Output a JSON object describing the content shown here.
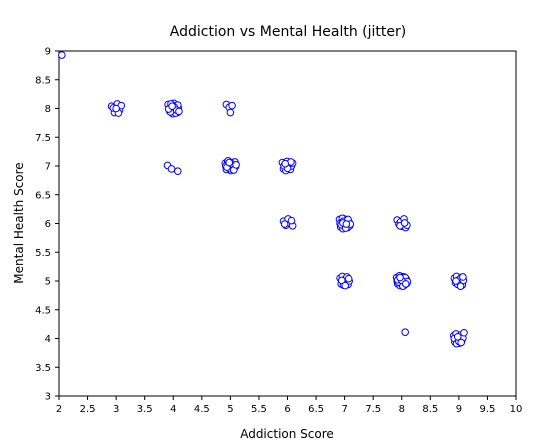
{
  "chart_data": {
    "type": "scatter",
    "title": "Addiction vs Mental Health (jitter)",
    "xlabel": "Addiction Score",
    "ylabel": "Mental Health Score",
    "xlim": [
      2,
      10
    ],
    "ylim": [
      3,
      9
    ],
    "xticks": [
      "2",
      "2.5",
      "3",
      "3.5",
      "4",
      "4.5",
      "5",
      "5.5",
      "6",
      "6.5",
      "7",
      "7.5",
      "8",
      "8.5",
      "9",
      "9.5",
      "10"
    ],
    "yticks": [
      "3",
      "3.5",
      "4",
      "4.5",
      "5",
      "5.5",
      "6",
      "6.5",
      "7",
      "7.5",
      "8",
      "8.5",
      "9"
    ],
    "grid": false,
    "legend": "none",
    "marker": "open-circle",
    "marker_color": "#0000ff",
    "points": [
      {
        "x": 2.05,
        "y": 8.93
      },
      {
        "x": 2.92,
        "y": 8.04
      },
      {
        "x": 2.97,
        "y": 7.93
      },
      {
        "x": 3.02,
        "y": 8.08
      },
      {
        "x": 3.06,
        "y": 7.97
      },
      {
        "x": 3.09,
        "y": 8.05
      },
      {
        "x": 2.95,
        "y": 8.01
      },
      {
        "x": 3.04,
        "y": 7.92
      },
      {
        "x": 3.0,
        "y": 8.0
      },
      {
        "x": 3.91,
        "y": 8.07
      },
      {
        "x": 3.94,
        "y": 7.95
      },
      {
        "x": 3.97,
        "y": 8.03
      },
      {
        "x": 3.99,
        "y": 7.91
      },
      {
        "x": 4.01,
        "y": 8.09
      },
      {
        "x": 4.03,
        "y": 7.98
      },
      {
        "x": 4.05,
        "y": 8.05
      },
      {
        "x": 4.07,
        "y": 7.93
      },
      {
        "x": 4.09,
        "y": 8.01
      },
      {
        "x": 3.93,
        "y": 8.0
      },
      {
        "x": 3.96,
        "y": 8.08
      },
      {
        "x": 4.0,
        "y": 7.96
      },
      {
        "x": 4.04,
        "y": 7.92
      },
      {
        "x": 4.08,
        "y": 8.06
      },
      {
        "x": 3.95,
        "y": 7.94
      },
      {
        "x": 4.02,
        "y": 8.02
      },
      {
        "x": 4.06,
        "y": 7.97
      },
      {
        "x": 3.92,
        "y": 7.99
      },
      {
        "x": 4.1,
        "y": 7.95
      },
      {
        "x": 3.98,
        "y": 8.04
      },
      {
        "x": 3.9,
        "y": 7.01
      },
      {
        "x": 3.97,
        "y": 6.95
      },
      {
        "x": 4.08,
        "y": 6.91
      },
      {
        "x": 4.93,
        "y": 8.07
      },
      {
        "x": 4.98,
        "y": 8.02
      },
      {
        "x": 5.03,
        "y": 8.05
      },
      {
        "x": 5.0,
        "y": 7.93
      },
      {
        "x": 4.91,
        "y": 7.05
      },
      {
        "x": 4.93,
        "y": 6.94
      },
      {
        "x": 4.95,
        "y": 7.08
      },
      {
        "x": 4.97,
        "y": 6.97
      },
      {
        "x": 4.99,
        "y": 7.02
      },
      {
        "x": 5.01,
        "y": 6.92
      },
      {
        "x": 5.03,
        "y": 7.06
      },
      {
        "x": 5.05,
        "y": 6.96
      },
      {
        "x": 5.07,
        "y": 7.03
      },
      {
        "x": 5.09,
        "y": 6.99
      },
      {
        "x": 4.92,
        "y": 7.0
      },
      {
        "x": 4.96,
        "y": 7.09
      },
      {
        "x": 5.0,
        "y": 6.95
      },
      {
        "x": 5.04,
        "y": 7.01
      },
      {
        "x": 5.08,
        "y": 7.07
      },
      {
        "x": 4.94,
        "y": 6.98
      },
      {
        "x": 5.02,
        "y": 7.04
      },
      {
        "x": 5.06,
        "y": 6.93
      },
      {
        "x": 4.98,
        "y": 7.06
      },
      {
        "x": 5.1,
        "y": 7.02
      },
      {
        "x": 5.91,
        "y": 7.06
      },
      {
        "x": 5.93,
        "y": 6.95
      },
      {
        "x": 5.95,
        "y": 7.02
      },
      {
        "x": 5.97,
        "y": 6.92
      },
      {
        "x": 5.99,
        "y": 7.08
      },
      {
        "x": 6.01,
        "y": 6.98
      },
      {
        "x": 6.03,
        "y": 7.04
      },
      {
        "x": 6.05,
        "y": 6.94
      },
      {
        "x": 6.07,
        "y": 7.0
      },
      {
        "x": 6.09,
        "y": 7.05
      },
      {
        "x": 5.94,
        "y": 7.0
      },
      {
        "x": 6.0,
        "y": 6.96
      },
      {
        "x": 6.06,
        "y": 7.07
      },
      {
        "x": 5.96,
        "y": 7.04
      },
      {
        "x": 5.93,
        "y": 6.04
      },
      {
        "x": 5.97,
        "y": 5.97
      },
      {
        "x": 6.01,
        "y": 6.08
      },
      {
        "x": 6.05,
        "y": 6.0
      },
      {
        "x": 6.09,
        "y": 5.96
      },
      {
        "x": 5.95,
        "y": 5.99
      },
      {
        "x": 6.07,
        "y": 6.05
      },
      {
        "x": 6.91,
        "y": 6.07
      },
      {
        "x": 6.93,
        "y": 5.94
      },
      {
        "x": 6.95,
        "y": 6.03
      },
      {
        "x": 6.97,
        "y": 5.91
      },
      {
        "x": 6.99,
        "y": 6.08
      },
      {
        "x": 7.01,
        "y": 5.97
      },
      {
        "x": 7.03,
        "y": 6.05
      },
      {
        "x": 7.05,
        "y": 5.93
      },
      {
        "x": 7.07,
        "y": 6.01
      },
      {
        "x": 7.09,
        "y": 5.96
      },
      {
        "x": 6.92,
        "y": 6.0
      },
      {
        "x": 6.96,
        "y": 6.09
      },
      {
        "x": 7.0,
        "y": 5.95
      },
      {
        "x": 7.04,
        "y": 6.06
      },
      {
        "x": 7.08,
        "y": 6.02
      },
      {
        "x": 6.94,
        "y": 5.98
      },
      {
        "x": 6.98,
        "y": 6.04
      },
      {
        "x": 7.02,
        "y": 5.92
      },
      {
        "x": 7.06,
        "y": 6.07
      },
      {
        "x": 7.1,
        "y": 5.99
      },
      {
        "x": 6.97,
        "y": 6.01
      },
      {
        "x": 7.03,
        "y": 5.99
      },
      {
        "x": 6.92,
        "y": 5.05
      },
      {
        "x": 6.94,
        "y": 4.95
      },
      {
        "x": 6.96,
        "y": 5.08
      },
      {
        "x": 6.98,
        "y": 4.93
      },
      {
        "x": 7.0,
        "y": 5.02
      },
      {
        "x": 7.02,
        "y": 4.97
      },
      {
        "x": 7.04,
        "y": 5.07
      },
      {
        "x": 7.06,
        "y": 4.94
      },
      {
        "x": 7.08,
        "y": 5.0
      },
      {
        "x": 6.95,
        "y": 5.01
      },
      {
        "x": 7.01,
        "y": 4.92
      },
      {
        "x": 7.07,
        "y": 5.04
      },
      {
        "x": 7.92,
        "y": 6.06
      },
      {
        "x": 7.95,
        "y": 5.99
      },
      {
        "x": 7.98,
        "y": 6.03
      },
      {
        "x": 8.01,
        "y": 5.95
      },
      {
        "x": 8.04,
        "y": 6.08
      },
      {
        "x": 8.07,
        "y": 5.93
      },
      {
        "x": 8.09,
        "y": 5.97
      },
      {
        "x": 7.97,
        "y": 5.96
      },
      {
        "x": 8.05,
        "y": 6.01
      },
      {
        "x": 7.91,
        "y": 5.06
      },
      {
        "x": 7.93,
        "y": 4.95
      },
      {
        "x": 7.95,
        "y": 5.03
      },
      {
        "x": 7.97,
        "y": 4.92
      },
      {
        "x": 7.99,
        "y": 5.08
      },
      {
        "x": 8.01,
        "y": 4.97
      },
      {
        "x": 8.03,
        "y": 5.05
      },
      {
        "x": 8.05,
        "y": 4.93
      },
      {
        "x": 8.07,
        "y": 5.01
      },
      {
        "x": 8.09,
        "y": 4.96
      },
      {
        "x": 7.92,
        "y": 5.0
      },
      {
        "x": 7.96,
        "y": 5.09
      },
      {
        "x": 8.0,
        "y": 4.94
      },
      {
        "x": 8.04,
        "y": 5.07
      },
      {
        "x": 8.08,
        "y": 5.03
      },
      {
        "x": 7.94,
        "y": 4.98
      },
      {
        "x": 7.98,
        "y": 5.04
      },
      {
        "x": 8.02,
        "y": 4.91
      },
      {
        "x": 8.06,
        "y": 5.06
      },
      {
        "x": 8.1,
        "y": 4.99
      },
      {
        "x": 7.93,
        "y": 5.02
      },
      {
        "x": 8.0,
        "y": 5.01
      },
      {
        "x": 8.07,
        "y": 4.95
      },
      {
        "x": 7.97,
        "y": 5.06
      },
      {
        "x": 8.06,
        "y": 4.11
      },
      {
        "x": 8.92,
        "y": 5.05
      },
      {
        "x": 8.94,
        "y": 4.97
      },
      {
        "x": 8.96,
        "y": 5.08
      },
      {
        "x": 8.98,
        "y": 4.94
      },
      {
        "x": 9.0,
        "y": 5.02
      },
      {
        "x": 9.02,
        "y": 4.96
      },
      {
        "x": 9.04,
        "y": 5.06
      },
      {
        "x": 9.06,
        "y": 4.93
      },
      {
        "x": 9.08,
        "y": 5.01
      },
      {
        "x": 8.95,
        "y": 5.0
      },
      {
        "x": 9.03,
        "y": 4.91
      },
      {
        "x": 9.07,
        "y": 5.07
      },
      {
        "x": 8.91,
        "y": 4.05
      },
      {
        "x": 8.93,
        "y": 3.94
      },
      {
        "x": 8.95,
        "y": 4.08
      },
      {
        "x": 8.97,
        "y": 3.97
      },
      {
        "x": 8.99,
        "y": 4.02
      },
      {
        "x": 9.01,
        "y": 3.92
      },
      {
        "x": 9.03,
        "y": 4.06
      },
      {
        "x": 9.05,
        "y": 3.96
      },
      {
        "x": 9.07,
        "y": 4.01
      },
      {
        "x": 9.09,
        "y": 4.1
      },
      {
        "x": 8.92,
        "y": 4.0
      },
      {
        "x": 8.96,
        "y": 3.91
      },
      {
        "x": 9.0,
        "y": 3.95
      },
      {
        "x": 9.04,
        "y": 3.93
      },
      {
        "x": 8.98,
        "y": 4.03
      }
    ]
  }
}
